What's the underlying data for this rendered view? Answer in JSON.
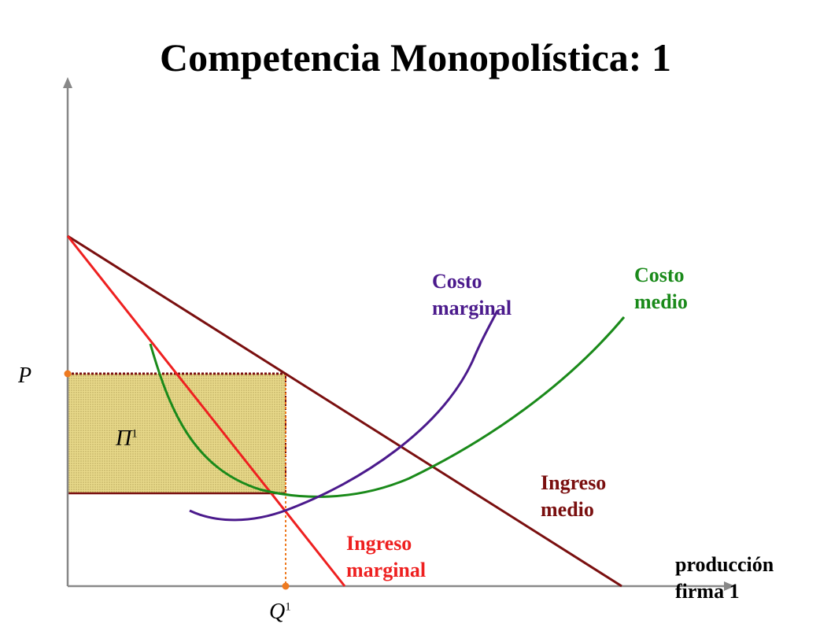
{
  "title": "Competencia Monopolística: 1",
  "axes": {
    "y_label": "P",
    "x_label_line1": "producción",
    "x_label_line2": "firma 1",
    "q_label": "Q",
    "q_sub": "1"
  },
  "profit": {
    "symbol": "Π",
    "sub": "1",
    "fill": "#e8d98a"
  },
  "curves": {
    "marginal_cost": {
      "line1": "Costo",
      "line2": "marginal",
      "color": "#4b1a8c"
    },
    "average_cost": {
      "line1": "Costo",
      "line2": "medio",
      "color": "#1a8a1a"
    },
    "average_revenue": {
      "line1": "Ingreso",
      "line2": "medio",
      "color": "#7a0f0f"
    },
    "marginal_revenue": {
      "line1": "Ingreso",
      "line2": "marginal",
      "color": "#ee2020"
    }
  },
  "colors": {
    "axis": "#888888",
    "guide": "#ee7a20",
    "rect_border": "#7a0f0f"
  }
}
